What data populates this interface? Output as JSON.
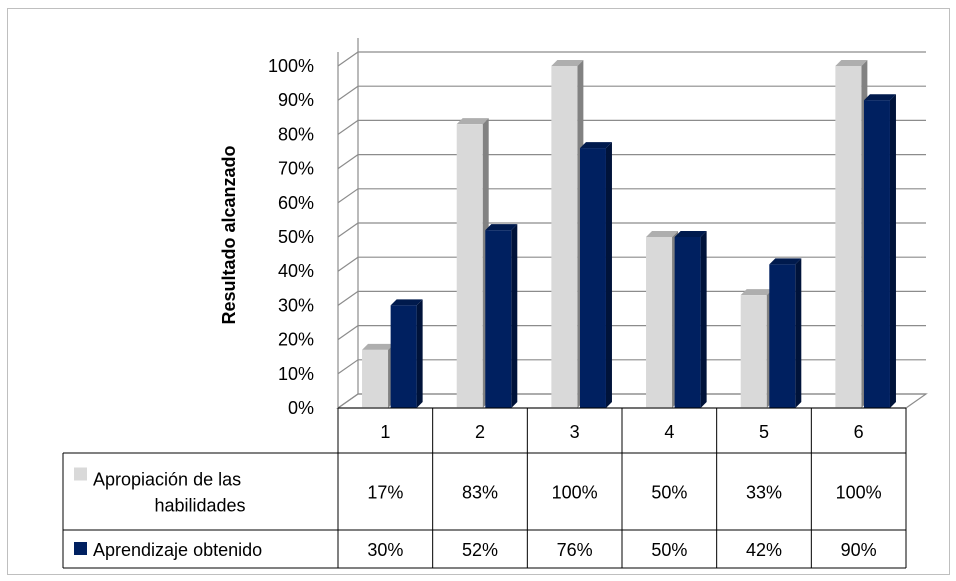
{
  "chart_data": {
    "type": "bar",
    "ylabel": "Resultado alcanzado",
    "xlabel": "",
    "ylim": [
      0,
      100
    ],
    "yticks": [
      "0%",
      "10%",
      "20%",
      "30%",
      "40%",
      "50%",
      "60%",
      "70%",
      "80%",
      "90%",
      "100%"
    ],
    "categories": [
      "1",
      "2",
      "3",
      "4",
      "5",
      "6"
    ],
    "grid": true,
    "legend": "data-table",
    "series": [
      {
        "name": "Apropiación de las habilidades",
        "name_lines": [
          "Apropiación de las",
          "habilidades"
        ],
        "values": [
          17,
          83,
          100,
          50,
          33,
          100
        ],
        "labels": [
          "17%",
          "83%",
          "100%",
          "50%",
          "33%",
          "100%"
        ],
        "color": "#d9d9d9"
      },
      {
        "name": "Aprendizaje obtenido",
        "name_lines": [
          "Aprendizaje obtenido"
        ],
        "values": [
          30,
          52,
          76,
          50,
          42,
          90
        ],
        "labels": [
          "30%",
          "52%",
          "76%",
          "50%",
          "42%",
          "90%"
        ],
        "color": "#002060"
      }
    ]
  }
}
